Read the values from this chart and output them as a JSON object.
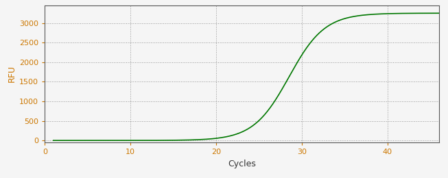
{
  "xlabel": "Cycles",
  "ylabel": "RFU",
  "xlim": [
    0,
    46
  ],
  "ylim": [
    -50,
    3450
  ],
  "yticks": [
    0,
    500,
    1000,
    1500,
    2000,
    2500,
    3000
  ],
  "xticks": [
    0,
    10,
    20,
    30,
    40
  ],
  "line_color": "#007700",
  "line_width": 1.2,
  "sigmoid_L": 3250,
  "sigmoid_k": 0.48,
  "sigmoid_x0": 28.5,
  "sigmoid_baseline": 0,
  "x_start": 1,
  "x_end": 46,
  "background_color": "#f5f5f5",
  "plot_bg_color": "#f5f5f5",
  "grid_color": "#555555",
  "tick_color": "#cc7700",
  "label_color": "#cc7700",
  "xlabel_color": "#333333",
  "xlabel_fontsize": 9,
  "ylabel_fontsize": 9,
  "tick_fontsize": 8,
  "spine_color": "#555555"
}
